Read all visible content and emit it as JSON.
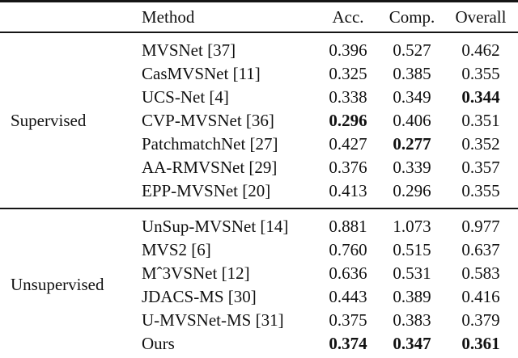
{
  "table": {
    "headers": {
      "group": "",
      "method": "Method",
      "acc": "Acc.",
      "comp": "Comp.",
      "overall": "Overall"
    },
    "sections": [
      {
        "group_label": "Supervised",
        "rows": [
          {
            "method": "MVSNet [37]",
            "acc": "0.396",
            "comp": "0.527",
            "overall": "0.462",
            "bold": []
          },
          {
            "method": "CasMVSNet [11]",
            "acc": "0.325",
            "comp": "0.385",
            "overall": "0.355",
            "bold": []
          },
          {
            "method": "UCS-Net [4]",
            "acc": "0.338",
            "comp": "0.349",
            "overall": "0.344",
            "bold": [
              "overall"
            ]
          },
          {
            "method": "CVP-MVSNet [36]",
            "acc": "0.296",
            "comp": "0.406",
            "overall": "0.351",
            "bold": [
              "acc"
            ]
          },
          {
            "method": "PatchmatchNet [27]",
            "acc": "0.427",
            "comp": "0.277",
            "overall": "0.352",
            "bold": [
              "comp"
            ]
          },
          {
            "method": "AA-RMVSNet [29]",
            "acc": "0.376",
            "comp": "0.339",
            "overall": "0.357",
            "bold": []
          },
          {
            "method": "EPP-MVSNet [20]",
            "acc": "0.413",
            "comp": "0.296",
            "overall": "0.355",
            "bold": []
          }
        ]
      },
      {
        "group_label": "Unsupervised",
        "rows": [
          {
            "method": "UnSup-MVSNet [14]",
            "acc": "0.881",
            "comp": "1.073",
            "overall": "0.977",
            "bold": []
          },
          {
            "method": "MVS2 [6]",
            "acc": "0.760",
            "comp": "0.515",
            "overall": "0.637",
            "bold": []
          },
          {
            "method": "Mˆ3VSNet [12]",
            "acc": "0.636",
            "comp": "0.531",
            "overall": "0.583",
            "bold": []
          },
          {
            "method": "JDACS-MS [30]",
            "acc": "0.443",
            "comp": "0.389",
            "overall": "0.416",
            "bold": []
          },
          {
            "method": "U-MVSNet-MS [31]",
            "acc": "0.375",
            "comp": "0.383",
            "overall": "0.379",
            "bold": []
          },
          {
            "method": "Ours",
            "acc": "0.374",
            "comp": "0.347",
            "overall": "0.361",
            "bold": [
              "acc",
              "comp",
              "overall"
            ]
          }
        ]
      }
    ]
  }
}
